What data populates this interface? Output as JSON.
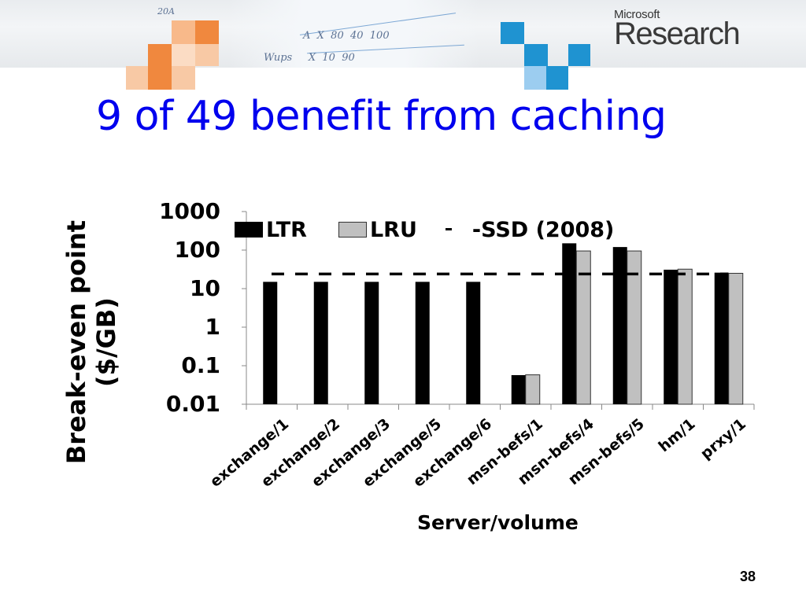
{
  "slide": {
    "title": "9 of 49 benefit from caching",
    "page_number": "38",
    "logo": {
      "small": "Microsoft",
      "big": "Research"
    },
    "banner_colors": {
      "orange": "#f0883e",
      "orange_light": "#f8b98a",
      "orange_pale": "#fbdcc4",
      "blue": "#1f93d1",
      "blue_light": "#9ccdf0"
    },
    "title_color": "#0000ee"
  },
  "chart_data": {
    "type": "bar",
    "title": "",
    "xlabel": "Server/volume",
    "ylabel": "Break-even point ($/GB)",
    "ylabel_lines": [
      "Break-even point",
      "($/GB)"
    ],
    "yscale": "log",
    "ylim": [
      0.01,
      1000
    ],
    "yticks": [
      "1000",
      "100",
      "10",
      "1",
      "0.1",
      "0.01"
    ],
    "grid": false,
    "legend_position": "top",
    "categories": [
      "exchange/1",
      "exchange/2",
      "exchange/3",
      "exchange/5",
      "exchange/6",
      "msn-befs/1",
      "msn-befs/4",
      "msn-befs/5",
      "hm/1",
      "prxy/1"
    ],
    "series": [
      {
        "name": "LTR",
        "color": "#000000",
        "values": [
          15,
          15,
          15,
          15,
          15,
          0.057,
          150,
          120,
          31,
          26
        ]
      },
      {
        "name": "LRU",
        "color": "#c0c0c0",
        "values": [
          null,
          null,
          null,
          null,
          null,
          0.058,
          95,
          95,
          32,
          25
        ]
      }
    ],
    "reference_lines": [
      {
        "name": "SSD (2008)",
        "style": "dashed",
        "color": "#000000",
        "value": 24
      }
    ],
    "legend": [
      "LTR",
      "LRU",
      "SSD (2008)"
    ],
    "legend_labels": {
      "ltr": "LTR",
      "lru": "LRU",
      "ssd": "-SSD (2008)"
    }
  }
}
